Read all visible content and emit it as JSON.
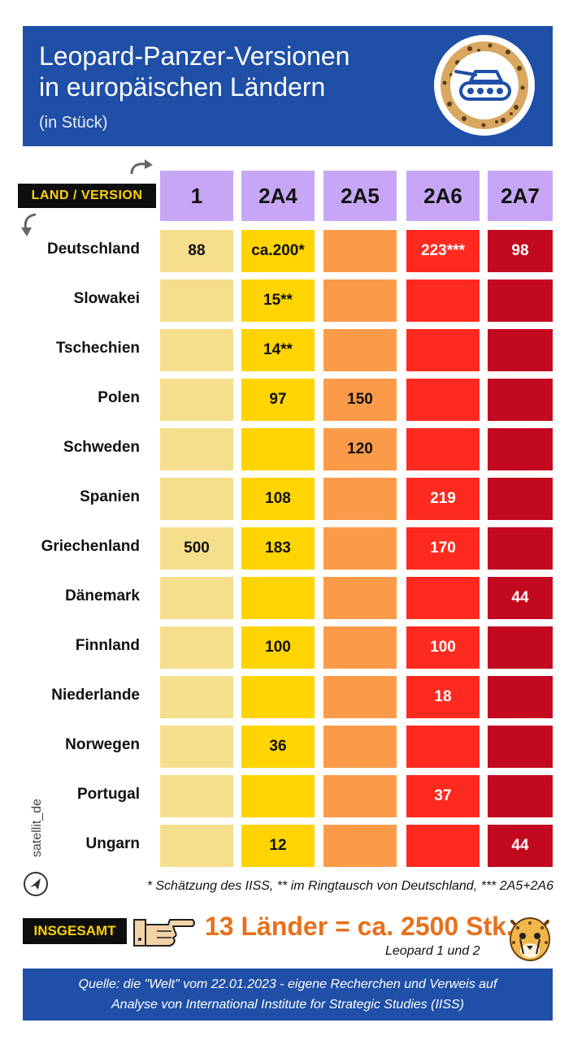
{
  "header": {
    "title_line1": "Leopard-Panzer-Versionen",
    "title_line2": "in europäischen Ländern",
    "subtitle": "(in Stück)"
  },
  "land_version_label": "LAND / VERSION",
  "colors": {
    "1": "#f6df8c",
    "2A4": "#ffd400",
    "2A5": "#fb9b4a",
    "2A6": "#ff2a1f",
    "2A7": "#c3091f",
    "header": "#c7a6f5",
    "banner": "#1f4fa6"
  },
  "chart_data": {
    "type": "table",
    "columns": [
      "1",
      "2A4",
      "2A5",
      "2A6",
      "2A7"
    ],
    "rows": [
      {
        "country": "Deutschland",
        "values": [
          "88",
          "ca.200*",
          "",
          "223***",
          "98"
        ]
      },
      {
        "country": "Slowakei",
        "values": [
          "",
          "15**",
          "",
          "",
          ""
        ]
      },
      {
        "country": "Tschechien",
        "values": [
          "",
          "14**",
          "",
          "",
          ""
        ]
      },
      {
        "country": "Polen",
        "values": [
          "",
          "97",
          "150",
          "",
          ""
        ]
      },
      {
        "country": "Schweden",
        "values": [
          "",
          "",
          "120",
          "",
          ""
        ]
      },
      {
        "country": "Spanien",
        "values": [
          "",
          "108",
          "",
          "219",
          ""
        ]
      },
      {
        "country": "Griechenland",
        "values": [
          "500",
          "183",
          "",
          "170",
          ""
        ]
      },
      {
        "country": "Dänemark",
        "values": [
          "",
          "",
          "",
          "",
          "44"
        ]
      },
      {
        "country": "Finnland",
        "values": [
          "",
          "100",
          "",
          "100",
          ""
        ]
      },
      {
        "country": "Niederlande",
        "values": [
          "",
          "",
          "",
          "18",
          ""
        ]
      },
      {
        "country": "Norwegen",
        "values": [
          "",
          "36",
          "",
          "",
          ""
        ]
      },
      {
        "country": "Portugal",
        "values": [
          "",
          "",
          "",
          "37",
          ""
        ]
      },
      {
        "country": "Ungarn",
        "values": [
          "",
          "12",
          "",
          "",
          "44"
        ]
      }
    ]
  },
  "watermark": "satellit_de",
  "footnote": "* Schätzung des IISS, ** im Ringtausch von Deutschland, *** 2A5+2A6",
  "total": {
    "label": "INSGESAMT",
    "text": "13 Länder = ca. 2500 Stk.",
    "note": "Leopard 1 und 2"
  },
  "source": {
    "line1": "Quelle:  die \"Welt\" vom 22.01.2023 - eigene Recherchen und Verweis auf",
    "line2": "Analyse von International Institute for Strategic Studies (IISS)"
  }
}
